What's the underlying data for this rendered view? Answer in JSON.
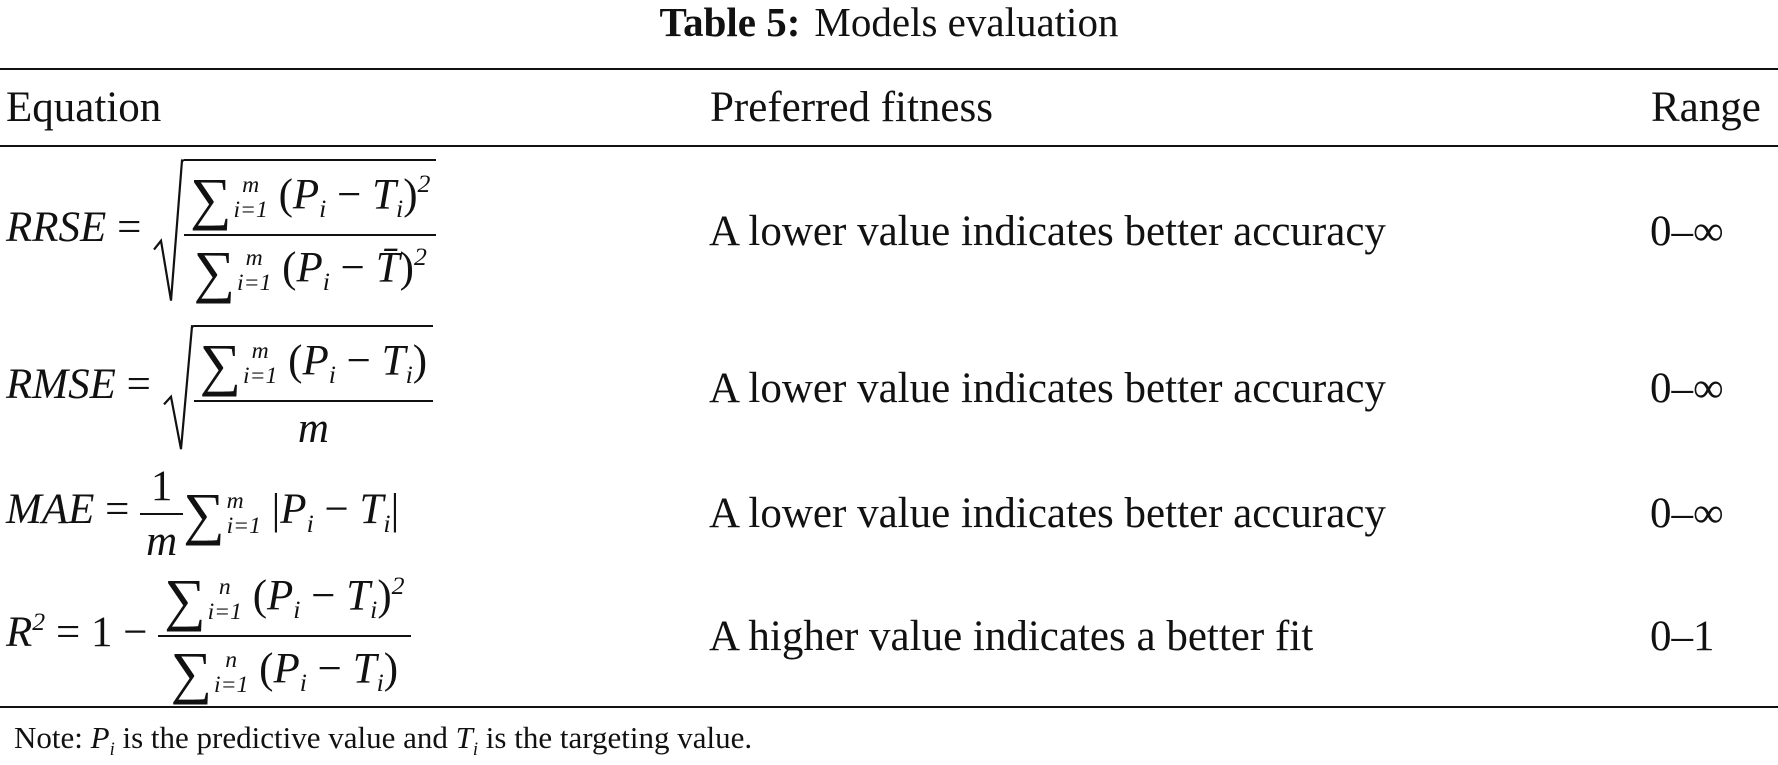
{
  "table": {
    "caption_label": "Table 5:",
    "caption_text": "Models evaluation",
    "headers": [
      "Equation",
      "Preferred fitness",
      "Range"
    ],
    "rows": [
      {
        "equation": [
          {
            "it": "RRSE"
          },
          " = ",
          {
            "sqrt": [
              {
                "frac": {
                  "num": [
                    {
                      "op": "∑",
                      "from": "i=1",
                      "to": "m"
                    },
                    " (",
                    {
                      "it": "P"
                    },
                    {
                      "sub": "i"
                    },
                    " − ",
                    {
                      "it": "T"
                    },
                    {
                      "sub": "i"
                    },
                    ")",
                    {
                      "sup": "2"
                    }
                  ],
                  "den": [
                    {
                      "op": "∑",
                      "from": "i=1",
                      "to": "m"
                    },
                    " (",
                    {
                      "it": "P"
                    },
                    {
                      "sub": "i"
                    },
                    " − ",
                    {
                      "it": "T̄"
                    },
                    ")",
                    {
                      "sup": "2"
                    }
                  ]
                }
              }
            ]
          }
        ],
        "fitness": "A lower value indicates better accuracy",
        "range": "0–∞"
      },
      {
        "equation": [
          {
            "it": "RMSE"
          },
          " = ",
          {
            "sqrt": [
              {
                "frac": {
                  "num": [
                    {
                      "op": "∑",
                      "from": "i=1",
                      "to": "m"
                    },
                    " (",
                    {
                      "it": "P"
                    },
                    {
                      "sub": "i"
                    },
                    " − ",
                    {
                      "it": "T"
                    },
                    {
                      "sub": "i"
                    },
                    ")"
                  ],
                  "den": [
                    {
                      "it": "m"
                    }
                  ]
                }
              }
            ]
          }
        ],
        "fitness": "A lower value indicates better accuracy",
        "range": "0–∞"
      },
      {
        "equation": [
          {
            "it": "MAE"
          },
          " = ",
          {
            "frac": {
              "num": [
                "1"
              ],
              "den": [
                {
                  "it": "m"
                }
              ]
            }
          },
          {
            "op": "∑",
            "from": "i=1",
            "to": "m"
          },
          " |",
          {
            "it": "P"
          },
          {
            "sub": "i"
          },
          " − ",
          {
            "it": "T"
          },
          {
            "sub": "i"
          },
          "|"
        ],
        "fitness": "A lower value indicates better accuracy",
        "range": "0–∞"
      },
      {
        "equation": [
          {
            "it": "R"
          },
          {
            "sup": "2"
          },
          " = 1 − ",
          {
            "frac": {
              "num": [
                {
                  "op": "∑",
                  "from": "i=1",
                  "to": "n"
                },
                " (",
                {
                  "it": "P"
                },
                {
                  "sub": "i"
                },
                " − ",
                {
                  "it": "T"
                },
                {
                  "sub": "i"
                },
                ")",
                {
                  "sup": "2"
                }
              ],
              "den": [
                {
                  "op": "∑",
                  "from": "i=1",
                  "to": "n"
                },
                " (",
                {
                  "it": "P"
                },
                {
                  "sub": "i"
                },
                " − ",
                {
                  "it": "T"
                },
                {
                  "sub": "i"
                },
                ")"
              ]
            }
          }
        ],
        "fitness": "A higher value indicates a better fit",
        "range": "0–1"
      }
    ],
    "note": [
      "Note: ",
      {
        "it": "P"
      },
      {
        "sub": "i"
      },
      " is the predictive value and ",
      {
        "it": "T"
      },
      {
        "sub": "i"
      },
      " is the targeting value."
    ]
  }
}
